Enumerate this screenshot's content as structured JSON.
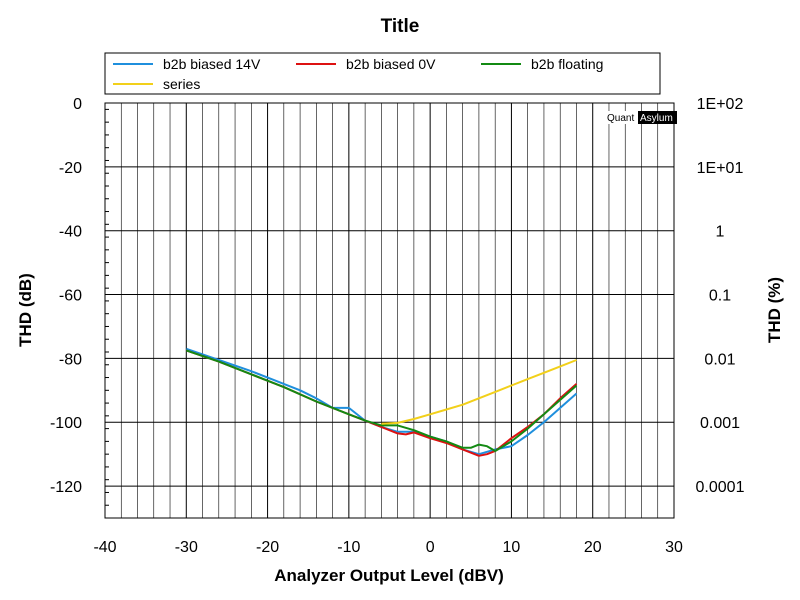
{
  "chart_data": {
    "type": "line",
    "title": "Title",
    "xlabel": "Analyzer Output Level (dBV)",
    "ylabel": "THD (dB)",
    "y2label": "THD (%)",
    "xlim": [
      -40,
      30
    ],
    "ylim": [
      -130,
      0
    ],
    "x_ticks": [
      "-40",
      "-30",
      "-20",
      "-10",
      "0",
      "10",
      "20",
      "30"
    ],
    "y_ticks": [
      "0",
      "-20",
      "-40",
      "-60",
      "-80",
      "-100",
      "-120"
    ],
    "y2_ticks": [
      "1E+02",
      "1E+01",
      "1",
      "0.1",
      "0.01",
      "0.001",
      "0.0001"
    ],
    "grid": true,
    "legend_position": "top",
    "watermark": {
      "left": "Quant",
      "right": "Asylum"
    },
    "series": [
      {
        "name": "b2b biased 14V",
        "color": "#1f8fdd",
        "x": [
          -30,
          -26,
          -22,
          -18,
          -16,
          -14,
          -12,
          -10,
          -8,
          -6,
          -4,
          -2,
          0,
          2,
          4,
          6,
          8,
          10,
          12,
          14,
          16,
          18
        ],
        "y": [
          -77,
          -80.5,
          -84,
          -88,
          -90,
          -92.5,
          -95.5,
          -95.5,
          -99.5,
          -101.5,
          -103,
          -103,
          -104.5,
          -106,
          -108.5,
          -110,
          -108.5,
          -107.5,
          -104,
          -100,
          -95.5,
          -91
        ]
      },
      {
        "name": "b2b biased 0V",
        "color": "#dd1111",
        "x": [
          -30,
          -26,
          -22,
          -18,
          -14,
          -10,
          -8,
          -6,
          -4,
          -3,
          -2,
          0,
          2,
          4,
          6,
          7,
          8,
          10,
          12,
          14,
          16,
          18
        ],
        "y": [
          -77.5,
          -81,
          -85,
          -89,
          -93.5,
          -97.5,
          -99.5,
          -101.5,
          -103.5,
          -103.8,
          -103.2,
          -105,
          -106.5,
          -108.5,
          -110.5,
          -110,
          -109,
          -105,
          -101.5,
          -97.5,
          -92.5,
          -88
        ]
      },
      {
        "name": "b2b floating",
        "color": "#138a13",
        "x": [
          -30,
          -26,
          -22,
          -18,
          -14,
          -10,
          -8,
          -6,
          -4,
          -2,
          0,
          2,
          4,
          5,
          6,
          7,
          8,
          10,
          12,
          14,
          16,
          18
        ],
        "y": [
          -77.5,
          -81,
          -85,
          -89,
          -93.5,
          -97.5,
          -99.5,
          -101,
          -101,
          -102.5,
          -104.5,
          -106,
          -108,
          -108,
          -107,
          -107.5,
          -109,
          -106,
          -102,
          -97.5,
          -93,
          -88.5
        ]
      },
      {
        "name": "series",
        "color": "#f2d01a",
        "x": [
          -6,
          -4,
          -2,
          0,
          2,
          4,
          6,
          8,
          10,
          12,
          14,
          16,
          18
        ],
        "y": [
          -100.5,
          -100.2,
          -99,
          -97.5,
          -96,
          -94.5,
          -92.5,
          -90.5,
          -88.5,
          -86.5,
          -84.5,
          -82.5,
          -80.5
        ]
      }
    ]
  }
}
